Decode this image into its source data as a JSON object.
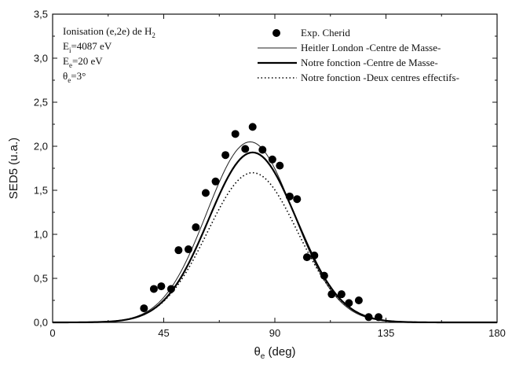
{
  "chart_data": {
    "type": "scatter",
    "xlabel_symbol": "θ",
    "xlabel_sub": "e",
    "xlabel_unit": "(deg)",
    "ylabel": "SED5 (u.a.)",
    "xlim": [
      0,
      180
    ],
    "ylim": [
      0,
      3.5
    ],
    "x_ticks": [
      "0",
      "45",
      "90",
      "135",
      "180"
    ],
    "y_ticks": [
      "0,0",
      "0,5",
      "1,0",
      "1,5",
      "2,0",
      "2,5",
      "3,0",
      "3,5"
    ],
    "grid": false,
    "legend_placement": "top-right",
    "annotations": [
      {
        "text": "Ionisation (e,2e) de ",
        "tail": "H",
        "sub": "2"
      },
      {
        "text": "E",
        "sub": "i",
        "tail": "=4087 eV"
      },
      {
        "text": "E",
        "sub": "e",
        "tail": "=20 eV"
      },
      {
        "text": "θ",
        "sub": "e",
        "tail": "=3°"
      }
    ],
    "series": [
      {
        "name": "Exp. Cherid",
        "style": "marker",
        "points": [
          [
            37,
            0.16
          ],
          [
            41,
            0.38
          ],
          [
            44,
            0.41
          ],
          [
            48,
            0.38
          ],
          [
            51,
            0.82
          ],
          [
            55,
            0.83
          ],
          [
            58,
            1.08
          ],
          [
            62,
            1.47
          ],
          [
            66,
            1.6
          ],
          [
            70,
            1.9
          ],
          [
            74,
            2.14
          ],
          [
            78,
            1.97
          ],
          [
            81,
            2.22
          ],
          [
            85,
            1.96
          ],
          [
            89,
            1.85
          ],
          [
            92,
            1.78
          ],
          [
            96,
            1.43
          ],
          [
            99,
            1.4
          ],
          [
            103,
            0.74
          ],
          [
            106,
            0.76
          ],
          [
            110,
            0.53
          ],
          [
            113,
            0.32
          ],
          [
            117,
            0.32
          ],
          [
            120,
            0.22
          ],
          [
            124,
            0.25
          ],
          [
            128,
            0.06
          ],
          [
            132,
            0.06
          ]
        ]
      },
      {
        "name": "Heitler London -Centre de Masse-",
        "style": "thin-solid",
        "peak_x": 80,
        "peak_y": 2.05,
        "sigma": 17.6
      },
      {
        "name": "Notre fonction -Centre de Masse-",
        "style": "thick-solid",
        "peak_x": 81,
        "peak_y": 1.93,
        "sigma": 17.8
      },
      {
        "name": "Notre fonction -Deux centres effectifs-",
        "style": "dotted",
        "peak_x": 81,
        "peak_y": 1.7,
        "sigma": 18.2
      }
    ]
  }
}
